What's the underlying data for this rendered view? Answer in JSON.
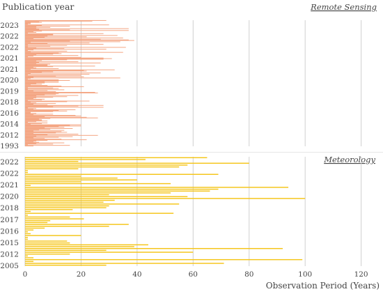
{
  "chart_data": [
    {
      "type": "bar",
      "orientation": "horizontal",
      "panel_label": "Remote Sensing",
      "ylabel": "Publication year",
      "y_tick_labels": [
        "2023",
        "2022",
        "2022",
        "2021",
        "2021",
        "2020",
        "2019",
        "2018",
        "2016",
        "2014",
        "2012",
        "1993"
      ],
      "xlim": [
        0,
        130
      ],
      "bar_color": "#F4A582",
      "grid": "vertical",
      "values": [
        29,
        24,
        5,
        6,
        2,
        2,
        1,
        30,
        6,
        16,
        4,
        9,
        4,
        37,
        5,
        16,
        37,
        6,
        3,
        4,
        1,
        28,
        10,
        10,
        33,
        8,
        22,
        7,
        35,
        3,
        27,
        37,
        39,
        16,
        34,
        2,
        23,
        8,
        28,
        1,
        15,
        9,
        1,
        36,
        4,
        14,
        29,
        3,
        1,
        15,
        2,
        35,
        12,
        13,
        10,
        4,
        19,
        3,
        1,
        20,
        28,
        31,
        28,
        15,
        6,
        4,
        19,
        5,
        27,
        4,
        9,
        8,
        8,
        25,
        10,
        3,
        4,
        12,
        2,
        32,
        21,
        22,
        10,
        6,
        27,
        2,
        23,
        1,
        20,
        11,
        21,
        3,
        34,
        2,
        1,
        12,
        16,
        12,
        7,
        12,
        7,
        4,
        6,
        2,
        8,
        13,
        21,
        1,
        10,
        12,
        1,
        14,
        8,
        3,
        11,
        25,
        26,
        12,
        11,
        7,
        19,
        4,
        15,
        10,
        4,
        3,
        7,
        6,
        1,
        23,
        15,
        2,
        4,
        11,
        3,
        8,
        28,
        19,
        10,
        28,
        1,
        4,
        3,
        18,
        12,
        15,
        10,
        2,
        2,
        4,
        10,
        3,
        18,
        20,
        7,
        22,
        26,
        9,
        5,
        6,
        6,
        8,
        4,
        1,
        8,
        6,
        2,
        20,
        16,
        20,
        12,
        14,
        7,
        17,
        9,
        5,
        14,
        3,
        13,
        15,
        11,
        3,
        19,
        8,
        26,
        4,
        17,
        12,
        3,
        7,
        13,
        22,
        8,
        4,
        3,
        5,
        14,
        4,
        10,
        1,
        16,
        3
      ]
    },
    {
      "type": "bar",
      "orientation": "horizontal",
      "panel_label": "Meteorology",
      "xlabel": "Observation Period (Years)",
      "y_tick_labels": [
        "2022",
        "2022",
        "2021",
        "2020",
        "2018",
        "2017",
        "2016",
        "2015",
        "2012",
        "2005"
      ],
      "x_tick_labels": [
        "0",
        "20",
        "40",
        "60",
        "80",
        "100",
        "120"
      ],
      "xlim": [
        0,
        130
      ],
      "bar_color": "#F5C518",
      "grid": "vertical",
      "values": [
        65,
        43,
        19,
        80,
        58,
        55,
        19,
        1,
        1,
        69,
        20,
        33,
        40,
        20,
        52,
        2,
        94,
        69,
        66,
        52,
        30,
        58,
        100,
        32,
        28,
        55,
        30,
        29,
        17,
        2,
        53,
        1,
        16,
        21,
        9,
        8,
        37,
        30,
        7,
        3,
        1,
        2,
        20,
        1,
        1,
        15,
        16,
        44,
        39,
        92,
        29,
        60,
        16,
        1,
        3,
        99,
        3,
        71,
        29
      ]
    }
  ]
}
